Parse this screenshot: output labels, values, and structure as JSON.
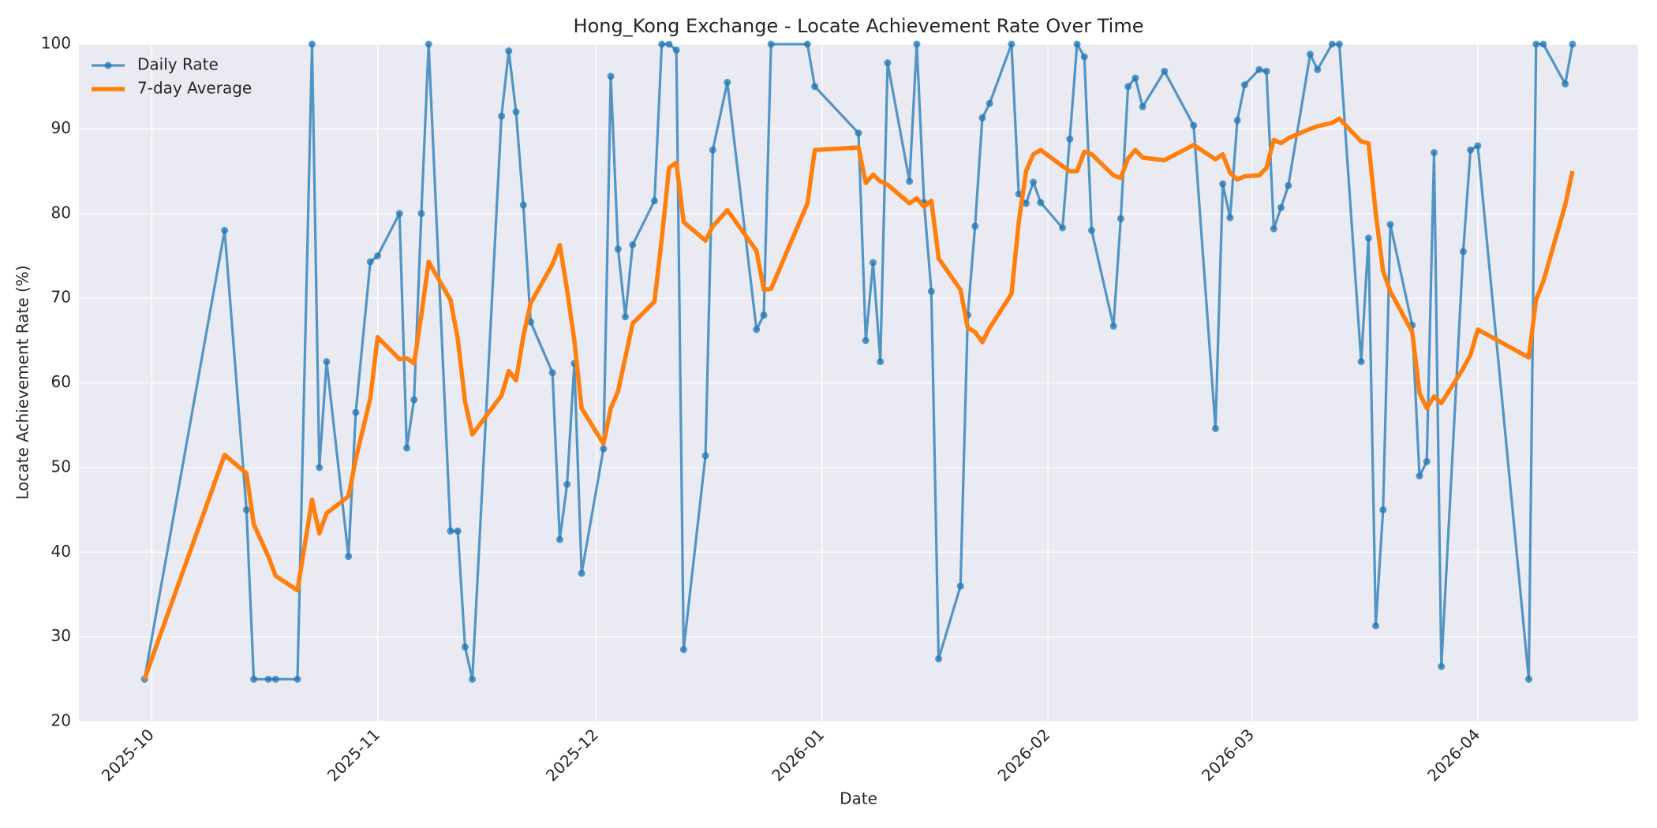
{
  "chart_data": {
    "type": "line",
    "title": "Hong_Kong Exchange - Locate Achievement Rate Over Time",
    "x_label": "Date",
    "y_label": "Locate Achievement Rate (%)",
    "x": [
      "2025-09-30",
      "2025-10-11",
      "2025-10-14",
      "2025-10-15",
      "2025-10-17",
      "2025-10-18",
      "2025-10-21",
      "2025-10-23",
      "2025-10-24",
      "2025-10-25",
      "2025-10-28",
      "2025-10-29",
      "2025-10-31",
      "2025-11-01",
      "2025-11-04",
      "2025-11-05",
      "2025-11-06",
      "2025-11-07",
      "2025-11-08",
      "2025-11-11",
      "2025-11-12",
      "2025-11-13",
      "2025-11-14",
      "2025-11-18",
      "2025-11-19",
      "2025-11-20",
      "2025-11-21",
      "2025-11-22",
      "2025-11-25",
      "2025-11-26",
      "2025-11-27",
      "2025-11-28",
      "2025-11-29",
      "2025-12-02",
      "2025-12-03",
      "2025-12-04",
      "2025-12-05",
      "2025-12-06",
      "2025-12-09",
      "2025-12-10",
      "2025-12-11",
      "2025-12-12",
      "2025-12-13",
      "2025-12-16",
      "2025-12-17",
      "2025-12-19",
      "2025-12-23",
      "2025-12-24",
      "2025-12-25",
      "2025-12-30",
      "2025-12-31",
      "2026-01-06",
      "2026-01-07",
      "2026-01-08",
      "2026-01-09",
      "2026-01-10",
      "2026-01-13",
      "2026-01-14",
      "2026-01-15",
      "2026-01-16",
      "2026-01-17",
      "2026-01-20",
      "2026-01-21",
      "2026-01-22",
      "2026-01-23",
      "2026-01-24",
      "2026-01-27",
      "2026-01-28",
      "2026-01-29",
      "2026-01-30",
      "2026-01-31",
      "2026-02-03",
      "2026-02-04",
      "2026-02-05",
      "2026-02-06",
      "2026-02-07",
      "2026-02-10",
      "2026-02-11",
      "2026-02-12",
      "2026-02-13",
      "2026-02-14",
      "2026-02-17",
      "2026-02-21",
      "2026-02-24",
      "2026-02-25",
      "2026-02-26",
      "2026-02-27",
      "2026-02-28",
      "2026-03-02",
      "2026-03-03",
      "2026-03-04",
      "2026-03-05",
      "2026-03-06",
      "2026-03-09",
      "2026-03-10",
      "2026-03-12",
      "2026-03-13",
      "2026-03-16",
      "2026-03-17",
      "2026-03-18",
      "2026-03-19",
      "2026-03-20",
      "2026-03-23",
      "2026-03-24",
      "2026-03-25",
      "2026-03-26",
      "2026-03-27",
      "2026-03-30",
      "2026-03-31",
      "2026-04-01",
      "2026-04-08",
      "2026-04-09",
      "2026-04-10",
      "2026-04-13",
      "2026-04-14"
    ],
    "series": [
      {
        "name": "Daily Rate",
        "color": "#1f77b4",
        "marker": "o",
        "values": [
          25,
          78,
          45,
          25,
          25,
          25,
          25,
          100,
          50,
          62.5,
          39.5,
          56.5,
          74.3,
          75,
          80,
          52.3,
          58,
          80,
          100,
          42.5,
          42.5,
          28.8,
          25,
          91.5,
          99.2,
          92,
          81,
          67.2,
          61.2,
          41.5,
          48,
          62.3,
          37.5,
          52.2,
          96.2,
          75.8,
          67.8,
          76.3,
          81.5,
          100,
          100,
          99.3,
          28.5,
          51.4,
          87.5,
          95.5,
          66.3,
          68,
          100,
          100,
          95,
          89.5,
          65,
          74.2,
          62.5,
          97.8,
          83.8,
          100,
          81.3,
          70.8,
          27.4,
          36,
          68,
          78.5,
          91.3,
          93,
          100,
          82.3,
          81.2,
          83.7,
          81.3,
          78.3,
          88.8,
          100,
          98.5,
          78,
          66.7,
          79.4,
          95,
          96,
          92.6,
          96.8,
          90.4,
          54.6,
          83.5,
          79.5,
          91,
          95.2,
          97,
          96.8,
          78.2,
          80.7,
          83.3,
          98.8,
          97,
          100,
          100,
          62.5,
          77.1,
          31.3,
          45,
          78.7,
          66.8,
          49,
          50.7,
          87.2,
          26.5,
          75.5,
          87.5,
          88,
          25,
          100,
          100,
          95.3,
          100
        ]
      },
      {
        "name": "7-day Average",
        "color": "#ff7f0e",
        "values": [
          25,
          51.5,
          49.3,
          43.3,
          39.5,
          37.2,
          35.5,
          46.2,
          42.2,
          44.6,
          46.6,
          51,
          58.2,
          65.4,
          62.8,
          62.9,
          62.3,
          68,
          74.3,
          69.8,
          65.2,
          57.8,
          53.9,
          58.5,
          61.4,
          60.3,
          65.5,
          69.4,
          74,
          76.3,
          71,
          65,
          57,
          52.8,
          57,
          59,
          63,
          67,
          69.6,
          77,
          85.4,
          86,
          79,
          76.8,
          78.5,
          80.4,
          75.6,
          71,
          71.1,
          81.2,
          87.5,
          87.8,
          83.6,
          84.6,
          83.8,
          83.4,
          81.2,
          81.8,
          80.8,
          81.5,
          74.7,
          71,
          66.5,
          66,
          64.8,
          66.5,
          70.5,
          79,
          85,
          87,
          87.5,
          85.6,
          85,
          85,
          87.3,
          87,
          84.5,
          84.2,
          86.5,
          87.5,
          86.6,
          86.3,
          88.1,
          86.4,
          87,
          84.8,
          84,
          84.4,
          84.5,
          85.4,
          88.7,
          88.3,
          88.9,
          90,
          90.3,
          90.7,
          91.2,
          88.5,
          88.3,
          80,
          73.2,
          70.8,
          66,
          58.8,
          57,
          58.4,
          57.6,
          61.7,
          63.3,
          66.3,
          63,
          69.8,
          72,
          81,
          85
        ]
      }
    ],
    "xlim": [
      "2025-09-21",
      "2026-04-23"
    ],
    "xticks": [
      {
        "value": "2025-10-01",
        "label": "2025-10"
      },
      {
        "value": "2025-11-01",
        "label": "2025-11"
      },
      {
        "value": "2025-12-01",
        "label": "2025-12"
      },
      {
        "value": "2026-01-01",
        "label": "2026-01"
      },
      {
        "value": "2026-02-01",
        "label": "2026-02"
      },
      {
        "value": "2026-03-01",
        "label": "2026-03"
      },
      {
        "value": "2026-04-01",
        "label": "2026-04"
      }
    ],
    "ylim": [
      20,
      100
    ],
    "yticks": [
      20,
      30,
      40,
      50,
      60,
      70,
      80,
      90,
      100
    ],
    "grid": true,
    "legend": "upper left"
  }
}
